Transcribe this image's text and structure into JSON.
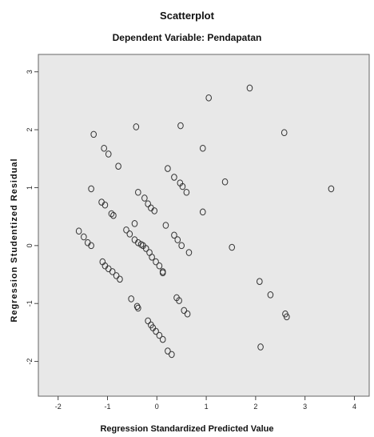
{
  "chart_data": {
    "type": "scatter",
    "title": "Scatterplot",
    "subtitle": "Dependent Variable: Pendapatan",
    "xlabel": "Regression Standardized Predicted Value",
    "ylabel": "Regression Studentized Residual",
    "xlim": [
      -2.4,
      4.3
    ],
    "ylim": [
      -2.6,
      3.3
    ],
    "xticks": [
      -2,
      -1,
      0,
      1,
      2,
      3,
      4
    ],
    "yticks": [
      -2,
      -1,
      0,
      1,
      2,
      3
    ],
    "xtick_labels": [
      "-2",
      "-1",
      "0",
      "1",
      "2",
      "3",
      "4"
    ],
    "ytick_labels": [
      "-2",
      "-1",
      "0",
      "1",
      "2",
      "3"
    ],
    "grid": false,
    "background": "#e8e8e8",
    "marker_color": "#333333",
    "points": [
      [
        1.05,
        2.55
      ],
      [
        1.88,
        2.72
      ],
      [
        -0.42,
        2.05
      ],
      [
        0.48,
        2.07
      ],
      [
        2.58,
        1.95
      ],
      [
        -1.28,
        1.92
      ],
      [
        -1.07,
        1.68
      ],
      [
        -0.98,
        1.58
      ],
      [
        -0.78,
        1.37
      ],
      [
        0.93,
        1.68
      ],
      [
        0.22,
        1.33
      ],
      [
        0.35,
        1.18
      ],
      [
        0.47,
        1.08
      ],
      [
        0.52,
        1.02
      ],
      [
        0.6,
        0.92
      ],
      [
        1.38,
        1.1
      ],
      [
        -1.33,
        0.98
      ],
      [
        -0.38,
        0.92
      ],
      [
        -0.25,
        0.82
      ],
      [
        -0.18,
        0.72
      ],
      [
        -0.12,
        0.65
      ],
      [
        -0.05,
        0.6
      ],
      [
        0.93,
        0.58
      ],
      [
        3.53,
        0.98
      ],
      [
        -1.12,
        0.75
      ],
      [
        -1.05,
        0.7
      ],
      [
        -0.92,
        0.55
      ],
      [
        -0.88,
        0.52
      ],
      [
        0.18,
        0.35
      ],
      [
        -0.45,
        0.38
      ],
      [
        -0.62,
        0.27
      ],
      [
        -0.55,
        0.2
      ],
      [
        -0.45,
        0.1
      ],
      [
        -0.38,
        0.05
      ],
      [
        -0.32,
        0.02
      ],
      [
        -0.28,
        0.0
      ],
      [
        -0.22,
        -0.05
      ],
      [
        -0.15,
        -0.12
      ],
      [
        -0.1,
        -0.2
      ],
      [
        -0.02,
        -0.28
      ],
      [
        0.05,
        -0.35
      ],
      [
        0.12,
        -0.45
      ],
      [
        0.12,
        -0.47
      ],
      [
        0.35,
        0.18
      ],
      [
        0.42,
        0.1
      ],
      [
        0.5,
        0.0
      ],
      [
        0.65,
        -0.12
      ],
      [
        1.52,
        -0.03
      ],
      [
        -1.58,
        0.25
      ],
      [
        -1.48,
        0.15
      ],
      [
        -1.4,
        0.05
      ],
      [
        -1.33,
        0.0
      ],
      [
        -1.1,
        -0.28
      ],
      [
        -1.05,
        -0.35
      ],
      [
        -0.98,
        -0.4
      ],
      [
        -0.9,
        -0.45
      ],
      [
        -0.82,
        -0.52
      ],
      [
        -0.75,
        -0.58
      ],
      [
        -0.52,
        -0.92
      ],
      [
        -0.4,
        -1.05
      ],
      [
        -0.38,
        -1.08
      ],
      [
        0.4,
        -0.9
      ],
      [
        0.45,
        -0.95
      ],
      [
        0.55,
        -1.12
      ],
      [
        0.62,
        -1.18
      ],
      [
        -0.18,
        -1.3
      ],
      [
        -0.12,
        -1.37
      ],
      [
        -0.08,
        -1.42
      ],
      [
        -0.02,
        -1.48
      ],
      [
        0.05,
        -1.55
      ],
      [
        0.12,
        -1.62
      ],
      [
        0.22,
        -1.82
      ],
      [
        0.3,
        -1.88
      ],
      [
        2.08,
        -0.62
      ],
      [
        2.3,
        -0.85
      ],
      [
        2.6,
        -1.18
      ],
      [
        2.63,
        -1.23
      ],
      [
        2.1,
        -1.75
      ]
    ]
  }
}
